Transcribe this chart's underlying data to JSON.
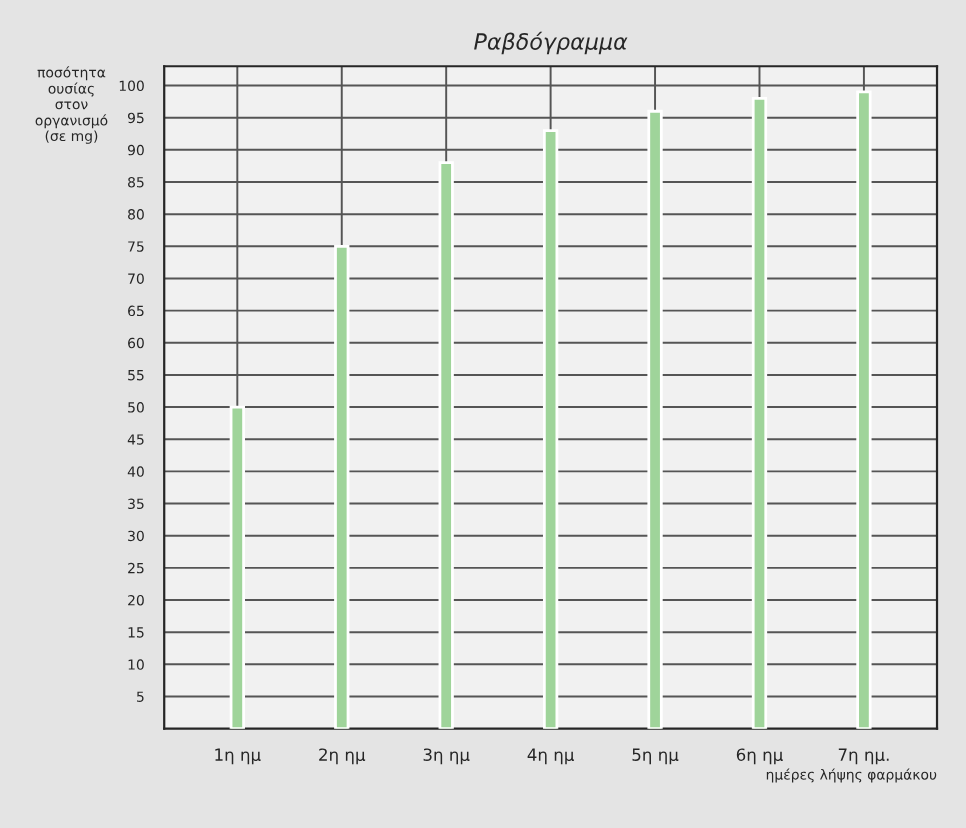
{
  "chart_data": {
    "type": "bar",
    "title": "Ραβδόγραμμα",
    "xlabel": "ημέρες λήψης φαρμάκου",
    "ylabel": "ποσότητα\nουσίας\nστον\nοργανισμό\n(σε mg)",
    "categories": [
      "1η ημ",
      "2η ημ",
      "3η ημ",
      "4η ημ",
      "5η ημ",
      "6η ημ",
      "7η ημ."
    ],
    "values": [
      50,
      75,
      88,
      93,
      96,
      98,
      99
    ],
    "color": "#9fd49a",
    "ylim": [
      0,
      103
    ],
    "yticks": [
      5,
      10,
      15,
      20,
      25,
      30,
      35,
      40,
      45,
      50,
      55,
      60,
      65,
      70,
      75,
      80,
      85,
      90,
      95,
      100
    ],
    "grid": true
  }
}
